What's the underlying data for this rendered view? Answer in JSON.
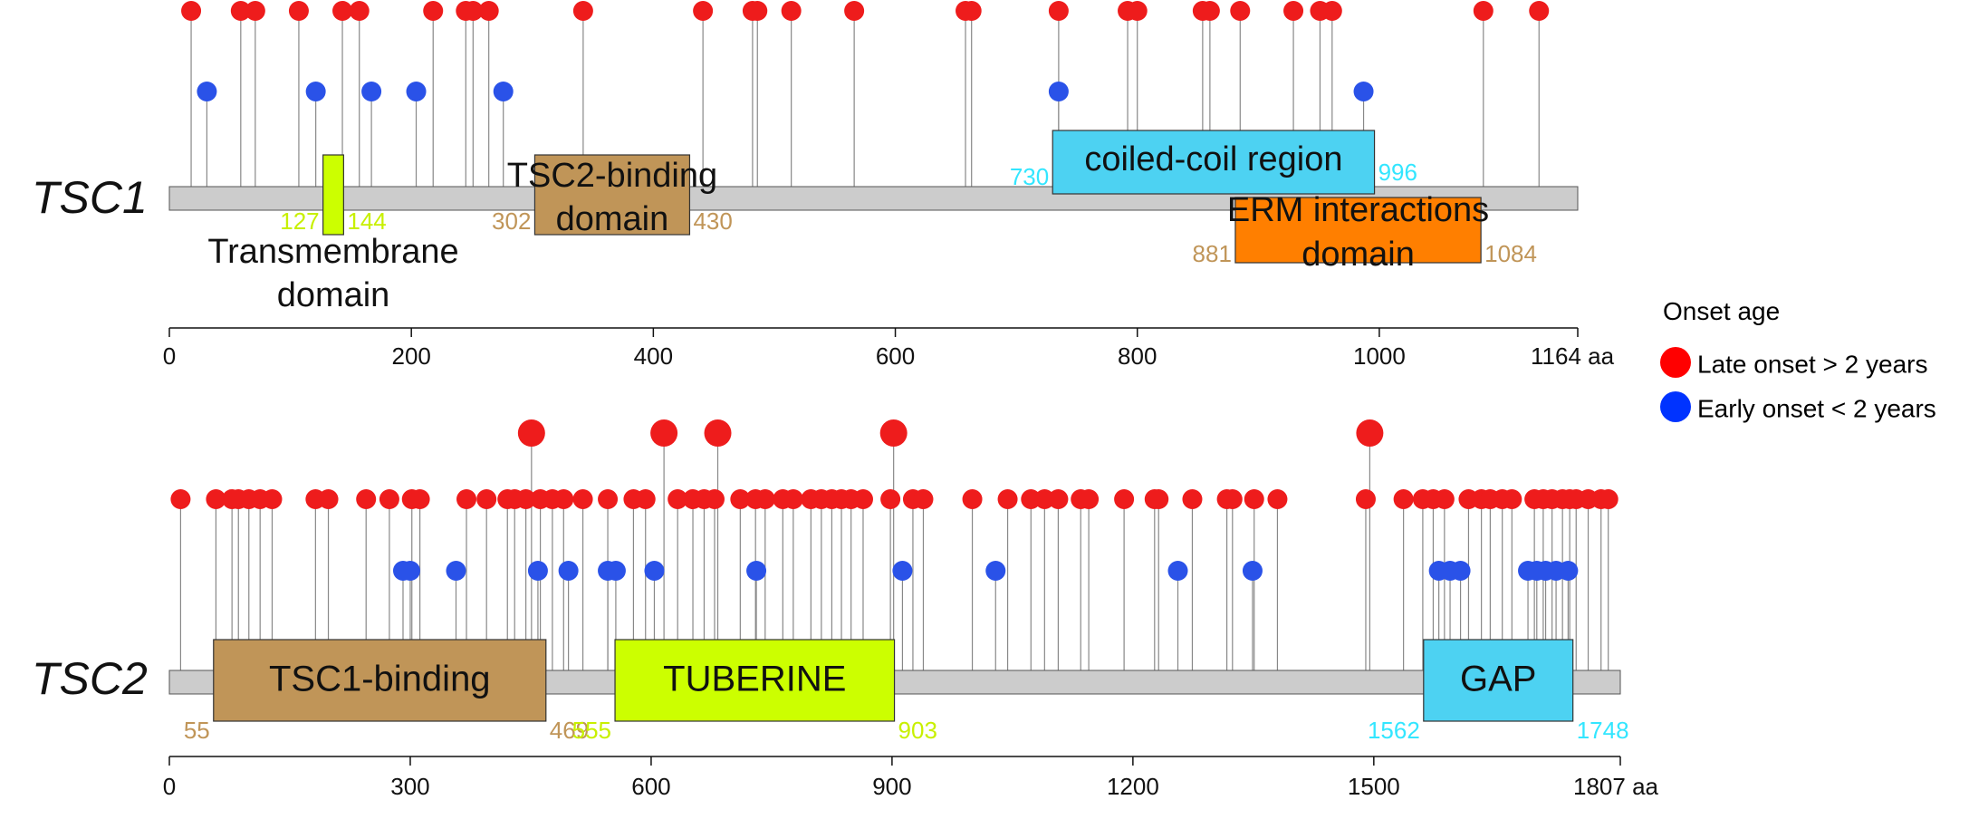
{
  "charts": [
    {
      "id": "tsc1",
      "gene_label": "TSC1",
      "length": 1164,
      "axis_unit": "aa",
      "ticks": [
        0,
        200,
        400,
        600,
        800,
        1000
      ],
      "domains": [
        {
          "id": "transmembrane",
          "name_lines": [
            "Transmembrane",
            "domain"
          ],
          "start": 127,
          "end": 144,
          "color": "#ccff00",
          "start_label": "127",
          "end_label": "144",
          "label_color": "#c8f000"
        },
        {
          "id": "tsc2-binding",
          "name_lines": [
            "TSC2-binding",
            "domain"
          ],
          "start": 302,
          "end": 430,
          "color": "#c09558",
          "start_label": "302",
          "end_label": "430",
          "label_color": "#c09558"
        },
        {
          "id": "coiled-coil",
          "name_lines": [
            "coiled-coil region"
          ],
          "start": 730,
          "end": 996,
          "color": "#4dd2f2",
          "start_label": "730",
          "end_label": "996",
          "label_color": "#33e6ff"
        },
        {
          "id": "erm-interactions",
          "name_lines": [
            "ERM interactions",
            "domain"
          ],
          "start": 881,
          "end": 1084,
          "color": "#ff7f00",
          "start_label": "881",
          "end_label": "1084",
          "label_color": "#c09558"
        }
      ],
      "late_onset": [
        18,
        59,
        71,
        107,
        143,
        157,
        218,
        245,
        251,
        264,
        342,
        441,
        482,
        486,
        514,
        566,
        658,
        663,
        735,
        792,
        800,
        854,
        860,
        885,
        929,
        951,
        961,
        1086,
        1132
      ],
      "early_onset": [
        31,
        121,
        167,
        204,
        276,
        735,
        987
      ]
    },
    {
      "id": "tsc2",
      "gene_label": "TSC2",
      "length": 1807,
      "axis_unit": "aa",
      "ticks": [
        0,
        300,
        600,
        900,
        1200,
        1500
      ],
      "domains": [
        {
          "id": "tsc1-binding",
          "name_lines": [
            "TSC1-binding"
          ],
          "start": 55,
          "end": 469,
          "color": "#c09558",
          "start_label": "55",
          "end_label": "469",
          "label_color": "#c09558"
        },
        {
          "id": "tuberine",
          "name_lines": [
            "TUBERINE"
          ],
          "start": 555,
          "end": 903,
          "color": "#ccff00",
          "start_label": "555",
          "end_label": "903",
          "label_color": "#c8f000"
        },
        {
          "id": "gap",
          "name_lines": [
            "GAP"
          ],
          "start": 1562,
          "end": 1748,
          "color": "#4dd2f2",
          "start_label": "1562",
          "end_label": "1748",
          "label_color": "#33e6ff"
        }
      ],
      "late_onset": [
        14,
        58,
        78,
        86,
        99,
        113,
        128,
        182,
        198,
        245,
        274,
        302,
        312,
        370,
        395,
        421,
        430,
        444,
        462,
        477,
        491,
        515,
        546,
        578,
        593,
        633,
        652,
        666,
        679,
        711,
        730,
        742,
        764,
        777,
        799,
        812,
        825,
        837,
        849,
        864,
        898,
        926,
        939,
        1000,
        1044,
        1073,
        1090,
        1107,
        1135,
        1145,
        1189,
        1227,
        1232,
        1274,
        1317,
        1324,
        1351,
        1380,
        1490,
        1537,
        1561,
        1574,
        1588,
        1618,
        1634,
        1645,
        1660,
        1672,
        1700,
        1711,
        1722,
        1735,
        1744,
        1752,
        1767,
        1783,
        1792
      ],
      "big_late_onset": [
        451,
        616,
        683,
        902,
        1495
      ],
      "early_onset": [
        291,
        300,
        357,
        459,
        497,
        546,
        556,
        604,
        731,
        913,
        1029,
        1256,
        1349,
        1581,
        1595,
        1608,
        1692,
        1703,
        1714,
        1727,
        1742
      ]
    }
  ],
  "legend": {
    "title": "Onset age",
    "items": [
      {
        "id": "late",
        "label": "Late onset > 2 years",
        "color": "#ff0000"
      },
      {
        "id": "early",
        "label": "Early onset < 2 years",
        "color": "#0033ff"
      }
    ]
  },
  "colors": {
    "late": "#ee1c1c",
    "early": "#2a52e8",
    "backbone": "#cccccc",
    "stem": "#888888"
  }
}
